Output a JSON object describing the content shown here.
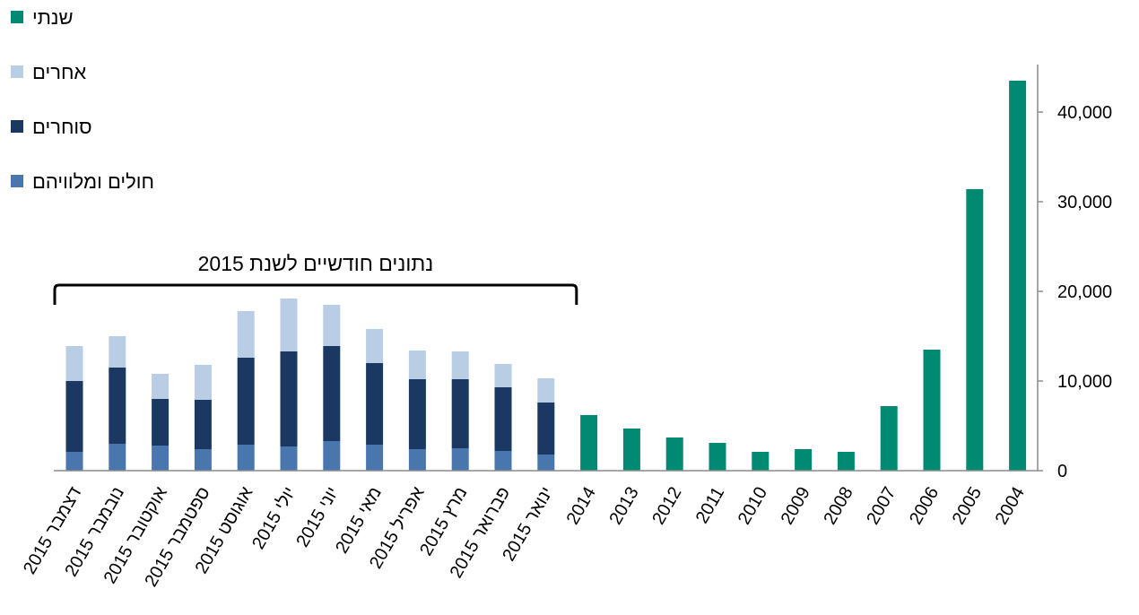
{
  "chart_data": {
    "type": "bar",
    "orientation": "stacked-vertical",
    "categories": [
      "דצמבר 2015",
      "נובמבר 2015",
      "אוקטובר 2015",
      "ספטמבר 2015",
      "אוגוסט 2015",
      "יולי 2015",
      "יוני 2015",
      "מאי 2015",
      "אפריל 2015",
      "מרץ 2015",
      "פברואר 2015",
      "ינואר 2015",
      "2014",
      "2013",
      "2012",
      "2011",
      "2010",
      "2009",
      "2008",
      "2007",
      "2006",
      "2005",
      "2004"
    ],
    "series": [
      {
        "name": "חולים ומלוויהם",
        "color": "#4a76ae",
        "values": [
          2100,
          3000,
          2800,
          2400,
          2900,
          2700,
          3300,
          2900,
          2400,
          2500,
          2200,
          1800,
          null,
          null,
          null,
          null,
          null,
          null,
          null,
          null,
          null,
          null,
          null
        ]
      },
      {
        "name": "סוחרים",
        "color": "#1a3861",
        "values": [
          7900,
          8500,
          5200,
          5500,
          9700,
          10600,
          10600,
          9100,
          7800,
          7700,
          7100,
          5800,
          null,
          null,
          null,
          null,
          null,
          null,
          null,
          null,
          null,
          null,
          null
        ]
      },
      {
        "name": "אחרים",
        "color": "#b9cde4",
        "values": [
          3900,
          3500,
          2800,
          3900,
          5200,
          5900,
          4600,
          3800,
          3200,
          3100,
          2600,
          2700,
          null,
          null,
          null,
          null,
          null,
          null,
          null,
          null,
          null,
          null,
          null
        ]
      },
      {
        "name": "שנתי",
        "color": "#008a73",
        "values": [
          null,
          null,
          null,
          null,
          null,
          null,
          null,
          null,
          null,
          null,
          null,
          null,
          6200,
          4700,
          3700,
          3100,
          2100,
          2400,
          2100,
          7200,
          13500,
          31400,
          43500
        ]
      }
    ],
    "legend_order": [
      "שנתי",
      "אחרים",
      "סוחרים",
      "חולים ומלוויהם"
    ],
    "legend_position": "top-left",
    "ylim": [
      0,
      45000
    ],
    "yticks": [
      0,
      10000,
      20000,
      30000,
      40000
    ],
    "ytick_labels": [
      "0",
      "10,000",
      "20,000",
      "30,000",
      "40,000"
    ],
    "y_axis_side": "right",
    "grid": false,
    "annotations": [
      {
        "text": "נתונים חודשיים לשנת 2015",
        "type": "bracket",
        "span_categories": [
          0,
          11
        ]
      }
    ],
    "title": "",
    "xlabel": "",
    "ylabel": ""
  }
}
